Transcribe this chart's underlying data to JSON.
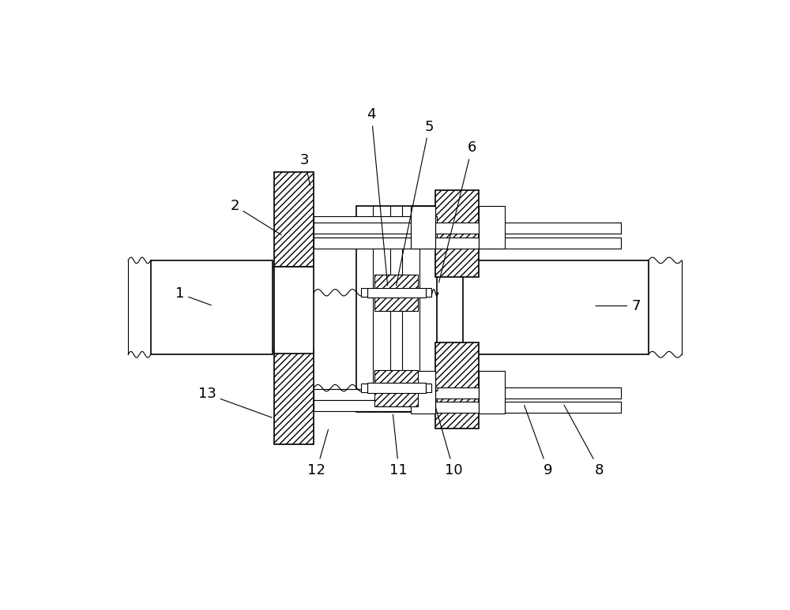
{
  "bg_color": "#ffffff",
  "line_color": "#000000",
  "fig_width": 10.0,
  "fig_height": 7.73,
  "lw_main": 1.2,
  "lw_thin": 0.8,
  "leaders": [
    [
      "1",
      1.3,
      4.1,
      1.85,
      3.9
    ],
    [
      "2",
      2.2,
      5.55,
      3.0,
      5.05
    ],
    [
      "3",
      3.35,
      6.3,
      3.45,
      5.85
    ],
    [
      "4",
      4.45,
      7.05,
      4.72,
      4.2
    ],
    [
      "5",
      5.4,
      6.85,
      4.85,
      4.2
    ],
    [
      "6",
      6.1,
      6.5,
      5.55,
      4.25
    ],
    [
      "7",
      8.8,
      3.9,
      8.1,
      3.9
    ],
    [
      "8",
      8.2,
      1.2,
      7.6,
      2.3
    ],
    [
      "9",
      7.35,
      1.2,
      6.95,
      2.3
    ],
    [
      "10",
      5.8,
      1.2,
      5.5,
      2.25
    ],
    [
      "11",
      4.9,
      1.2,
      4.8,
      2.15
    ],
    [
      "12",
      3.55,
      1.2,
      3.75,
      1.9
    ],
    [
      "13",
      1.75,
      2.45,
      2.85,
      2.05
    ]
  ]
}
